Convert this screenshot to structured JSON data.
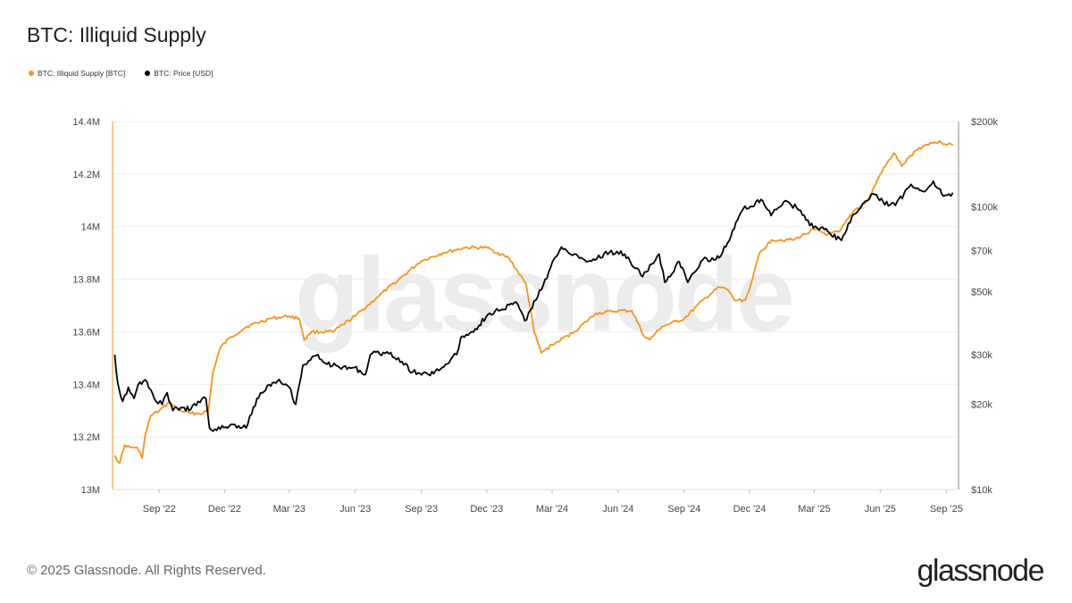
{
  "chart_data": {
    "type": "line",
    "title": "BTC: Illiquid Supply",
    "legend_placement": "top-left",
    "grid": true,
    "watermark": "glassnode",
    "x_ticks": [
      "Sep '22",
      "Dec '22",
      "Mar '23",
      "Jun '23",
      "Sep '23",
      "Dec '23",
      "Mar '24",
      "Jun '24",
      "Sep '24",
      "Dec '24",
      "Mar '25",
      "Jun '25",
      "Sep '25"
    ],
    "y_left": {
      "ticks": [
        13000000,
        13200000,
        13400000,
        13600000,
        13800000,
        14000000,
        14200000,
        14400000
      ],
      "tick_labels": [
        "13M",
        "13.2M",
        "13.4M",
        "13.6M",
        "13.8M",
        "14M",
        "14.2M",
        "14.4M"
      ],
      "range": [
        13000000,
        14400000
      ]
    },
    "y_right": {
      "scale": "log",
      "ticks": [
        10000,
        20000,
        30000,
        50000,
        70000,
        100000,
        200000
      ],
      "tick_labels": [
        "$10k",
        "$20k",
        "$30k",
        "$50k",
        "$70k",
        "$100k",
        "$200k"
      ],
      "range": [
        10000,
        200000
      ]
    },
    "series": [
      {
        "name": "BTC: Illiquid Supply [BTC]",
        "axis": "left",
        "color": "#f7931a",
        "points": [
          [
            "2022-07-01",
            13130000
          ],
          [
            "2022-07-08",
            13100000
          ],
          [
            "2022-07-15",
            13170000
          ],
          [
            "2022-07-22",
            13160000
          ],
          [
            "2022-08-01",
            13160000
          ],
          [
            "2022-08-08",
            13120000
          ],
          [
            "2022-08-12",
            13200000
          ],
          [
            "2022-08-20",
            13280000
          ],
          [
            "2022-09-01",
            13300000
          ],
          [
            "2022-09-15",
            13330000
          ],
          [
            "2022-10-01",
            13300000
          ],
          [
            "2022-10-15",
            13290000
          ],
          [
            "2022-11-01",
            13290000
          ],
          [
            "2022-11-05",
            13300000
          ],
          [
            "2022-11-08",
            13290000
          ],
          [
            "2022-11-15",
            13450000
          ],
          [
            "2022-11-25",
            13540000
          ],
          [
            "2022-12-10",
            13580000
          ],
          [
            "2023-01-01",
            13620000
          ],
          [
            "2023-02-01",
            13650000
          ],
          [
            "2023-03-01",
            13660000
          ],
          [
            "2023-03-15",
            13650000
          ],
          [
            "2023-03-22",
            13570000
          ],
          [
            "2023-04-01",
            13600000
          ],
          [
            "2023-05-01",
            13600000
          ],
          [
            "2023-06-01",
            13660000
          ],
          [
            "2023-07-01",
            13730000
          ],
          [
            "2023-08-01",
            13800000
          ],
          [
            "2023-09-01",
            13870000
          ],
          [
            "2023-10-01",
            13900000
          ],
          [
            "2023-11-01",
            13920000
          ],
          [
            "2023-12-01",
            13920000
          ],
          [
            "2024-01-01",
            13880000
          ],
          [
            "2024-01-25",
            13780000
          ],
          [
            "2024-02-05",
            13600000
          ],
          [
            "2024-02-15",
            13520000
          ],
          [
            "2024-03-01",
            13550000
          ],
          [
            "2024-04-01",
            13600000
          ],
          [
            "2024-05-01",
            13670000
          ],
          [
            "2024-06-01",
            13680000
          ],
          [
            "2024-06-20",
            13680000
          ],
          [
            "2024-07-08",
            13580000
          ],
          [
            "2024-07-15",
            13570000
          ],
          [
            "2024-08-01",
            13620000
          ],
          [
            "2024-09-01",
            13650000
          ],
          [
            "2024-10-01",
            13730000
          ],
          [
            "2024-10-20",
            13770000
          ],
          [
            "2024-11-01",
            13760000
          ],
          [
            "2024-11-10",
            13720000
          ],
          [
            "2024-11-25",
            13720000
          ],
          [
            "2024-12-05",
            13800000
          ],
          [
            "2024-12-15",
            13900000
          ],
          [
            "2025-01-01",
            13950000
          ],
          [
            "2025-02-01",
            13950000
          ],
          [
            "2025-03-01",
            13990000
          ],
          [
            "2025-03-20",
            13970000
          ],
          [
            "2025-04-05",
            13980000
          ],
          [
            "2025-04-25",
            14060000
          ],
          [
            "2025-05-15",
            14100000
          ],
          [
            "2025-06-01",
            14200000
          ],
          [
            "2025-06-20",
            14280000
          ],
          [
            "2025-07-01",
            14230000
          ],
          [
            "2025-07-20",
            14290000
          ],
          [
            "2025-08-10",
            14320000
          ],
          [
            "2025-08-25",
            14320000
          ],
          [
            "2025-09-10",
            14310000
          ]
        ]
      },
      {
        "name": "BTC: Price [USD]",
        "axis": "right",
        "color": "#000000",
        "points": [
          [
            "2022-07-01",
            30000
          ],
          [
            "2022-07-05",
            24000
          ],
          [
            "2022-07-12",
            20500
          ],
          [
            "2022-07-20",
            23000
          ],
          [
            "2022-07-28",
            21000
          ],
          [
            "2022-08-05",
            24000
          ],
          [
            "2022-08-15",
            24000
          ],
          [
            "2022-08-25",
            21000
          ],
          [
            "2022-09-05",
            20000
          ],
          [
            "2022-09-12",
            22000
          ],
          [
            "2022-09-20",
            19000
          ],
          [
            "2022-10-01",
            19500
          ],
          [
            "2022-10-15",
            19200
          ],
          [
            "2022-10-25",
            20500
          ],
          [
            "2022-11-05",
            21000
          ],
          [
            "2022-11-10",
            16500
          ],
          [
            "2022-11-20",
            16200
          ],
          [
            "2022-12-10",
            17000
          ],
          [
            "2022-12-31",
            16500
          ],
          [
            "2023-01-15",
            21000
          ],
          [
            "2023-02-01",
            23500
          ],
          [
            "2023-02-15",
            24500
          ],
          [
            "2023-03-01",
            23000
          ],
          [
            "2023-03-10",
            20000
          ],
          [
            "2023-03-20",
            27500
          ],
          [
            "2023-04-10",
            30000
          ],
          [
            "2023-04-20",
            28000
          ],
          [
            "2023-05-10",
            27000
          ],
          [
            "2023-05-31",
            27000
          ],
          [
            "2023-06-15",
            25500
          ],
          [
            "2023-06-22",
            30000
          ],
          [
            "2023-07-10",
            30500
          ],
          [
            "2023-07-31",
            29200
          ],
          [
            "2023-08-20",
            26000
          ],
          [
            "2023-09-11",
            25500
          ],
          [
            "2023-09-30",
            27000
          ],
          [
            "2023-10-20",
            30000
          ],
          [
            "2023-10-26",
            34500
          ],
          [
            "2023-11-15",
            37000
          ],
          [
            "2023-12-05",
            42000
          ],
          [
            "2023-12-20",
            43000
          ],
          [
            "2024-01-11",
            46000
          ],
          [
            "2024-01-23",
            39500
          ],
          [
            "2024-02-10",
            48000
          ],
          [
            "2024-02-28",
            61000
          ],
          [
            "2024-03-14",
            72000
          ],
          [
            "2024-04-01",
            68000
          ],
          [
            "2024-04-20",
            64000
          ],
          [
            "2024-05-20",
            69000
          ],
          [
            "2024-06-10",
            68000
          ],
          [
            "2024-07-05",
            56500
          ],
          [
            "2024-07-28",
            68000
          ],
          [
            "2024-08-05",
            54000
          ],
          [
            "2024-08-25",
            64000
          ],
          [
            "2024-09-06",
            54000
          ],
          [
            "2024-09-27",
            65000
          ],
          [
            "2024-10-15",
            65000
          ],
          [
            "2024-10-29",
            72000
          ],
          [
            "2024-11-12",
            88000
          ],
          [
            "2024-11-22",
            98000
          ],
          [
            "2024-12-05",
            100000
          ],
          [
            "2024-12-17",
            106000
          ],
          [
            "2024-12-31",
            93000
          ],
          [
            "2025-01-20",
            105000
          ],
          [
            "2025-02-10",
            97000
          ],
          [
            "2025-02-28",
            84000
          ],
          [
            "2025-03-15",
            83000
          ],
          [
            "2025-04-08",
            76000
          ],
          [
            "2025-04-25",
            94000
          ],
          [
            "2025-05-22",
            111000
          ],
          [
            "2025-06-05",
            104000
          ],
          [
            "2025-06-22",
            101000
          ],
          [
            "2025-07-14",
            120000
          ],
          [
            "2025-08-02",
            113000
          ],
          [
            "2025-08-14",
            123000
          ],
          [
            "2025-08-28",
            109000
          ],
          [
            "2025-09-10",
            112000
          ]
        ]
      }
    ]
  },
  "footer": {
    "copyright": "© 2025 Glassnode. All Rights Reserved.",
    "logo": "glassnode"
  }
}
